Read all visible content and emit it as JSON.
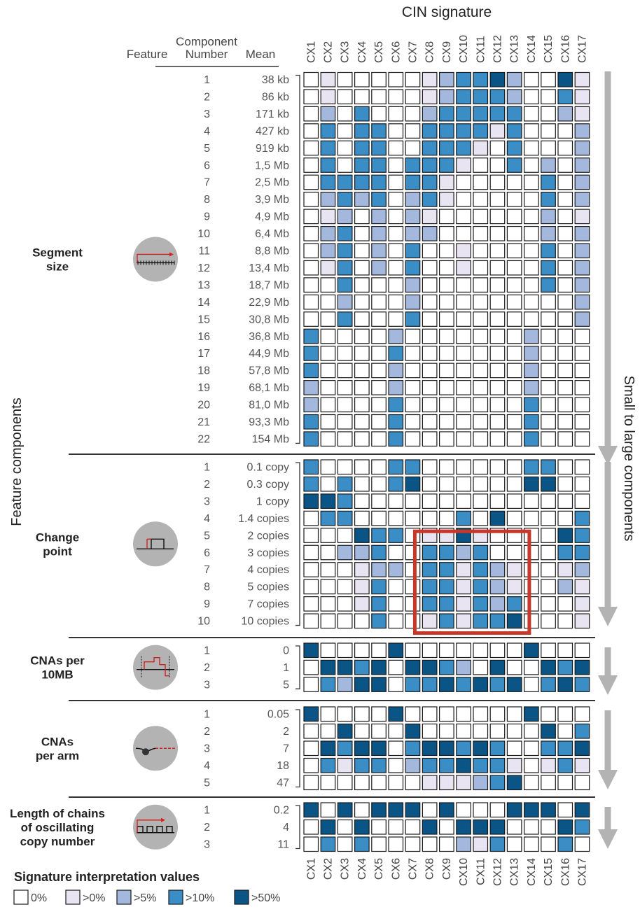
{
  "chart_data": {
    "type": "heatmap",
    "title": "CIN signature",
    "ylabel": "Feature components",
    "right_label": "Small to large components",
    "header": {
      "feature": "Feature",
      "component_number": "Component\nNumber",
      "mean": "Mean"
    },
    "signatures": [
      "CX1",
      "CX2",
      "CX3",
      "CX4",
      "CX5",
      "CX6",
      "CX7",
      "CX8",
      "CX9",
      "CX10",
      "CX11",
      "CX12",
      "CX13",
      "CX14",
      "CX15",
      "CX16",
      "CX17"
    ],
    "legend": {
      "title": "Signature interpretation values",
      "levels": [
        {
          "label": "0%",
          "color": "#ffffff"
        },
        {
          "label": ">0%",
          "color": "#e8e4f2"
        },
        {
          "label": ">5%",
          "color": "#a3b8dc"
        },
        {
          "label": ">10%",
          "color": "#3b8ec5"
        },
        {
          "label": ">50%",
          "color": "#0b5586"
        }
      ]
    },
    "highlight": {
      "sections": [
        "Change point"
      ],
      "from_row": 6,
      "to_row": 10,
      "from_signature": "CX8",
      "to_signature": "CX13",
      "color": "#c7372a"
    },
    "features": [
      {
        "name": "Segment\nsize",
        "icon": "segment-size-icon",
        "rows": [
          {
            "n": "1",
            "mean": "38 kb",
            "v": [
              0,
              1,
              0,
              0,
              0,
              0,
              0,
              1,
              2,
              3,
              3,
              4,
              2,
              0,
              0,
              4,
              1
            ]
          },
          {
            "n": "2",
            "mean": "86 kb",
            "v": [
              0,
              1,
              0,
              0,
              0,
              0,
              0,
              1,
              2,
              3,
              3,
              3,
              2,
              0,
              0,
              3,
              1
            ]
          },
          {
            "n": "3",
            "mean": "171 kb",
            "v": [
              0,
              2,
              0,
              3,
              0,
              0,
              0,
              2,
              3,
              3,
              3,
              3,
              3,
              0,
              0,
              2,
              1
            ]
          },
          {
            "n": "4",
            "mean": "427 kb",
            "v": [
              0,
              3,
              0,
              3,
              3,
              0,
              0,
              3,
              3,
              3,
              3,
              1,
              3,
              0,
              0,
              0,
              2
            ]
          },
          {
            "n": "5",
            "mean": "919 kb",
            "v": [
              0,
              3,
              0,
              3,
              3,
              0,
              0,
              3,
              3,
              3,
              1,
              0,
              3,
              0,
              0,
              0,
              2
            ]
          },
          {
            "n": "6",
            "mean": "1,5 Mb",
            "v": [
              0,
              3,
              0,
              3,
              3,
              0,
              3,
              3,
              3,
              1,
              0,
              0,
              3,
              0,
              2,
              0,
              2
            ]
          },
          {
            "n": "7",
            "mean": "2,5 Mb",
            "v": [
              0,
              3,
              3,
              3,
              3,
              0,
              3,
              3,
              1,
              0,
              0,
              0,
              0,
              0,
              3,
              0,
              2
            ]
          },
          {
            "n": "8",
            "mean": "3,9 Mb",
            "v": [
              0,
              2,
              3,
              2,
              3,
              0,
              2,
              3,
              1,
              0,
              0,
              0,
              0,
              0,
              3,
              0,
              2
            ]
          },
          {
            "n": "9",
            "mean": "4,9 Mb",
            "v": [
              0,
              1,
              2,
              0,
              2,
              0,
              2,
              1,
              0,
              0,
              0,
              0,
              0,
              0,
              2,
              0,
              1
            ]
          },
          {
            "n": "10",
            "mean": "6,4 Mb",
            "v": [
              0,
              2,
              3,
              0,
              2,
              0,
              2,
              2,
              0,
              0,
              0,
              0,
              0,
              0,
              2,
              0,
              2
            ]
          },
          {
            "n": "11",
            "mean": "8,8 Mb",
            "v": [
              0,
              2,
              3,
              0,
              2,
              0,
              3,
              0,
              0,
              1,
              0,
              0,
              0,
              0,
              3,
              0,
              2
            ]
          },
          {
            "n": "12",
            "mean": "13,4 Mb",
            "v": [
              0,
              1,
              3,
              0,
              2,
              0,
              3,
              0,
              0,
              1,
              0,
              0,
              0,
              0,
              3,
              0,
              2
            ]
          },
          {
            "n": "13",
            "mean": "18,7 Mb",
            "v": [
              0,
              0,
              3,
              0,
              0,
              0,
              2,
              0,
              0,
              0,
              0,
              0,
              0,
              0,
              3,
              0,
              2
            ]
          },
          {
            "n": "14",
            "mean": "22,9 Mb",
            "v": [
              0,
              0,
              2,
              0,
              0,
              0,
              2,
              0,
              0,
              0,
              0,
              0,
              0,
              0,
              0,
              0,
              2
            ]
          },
          {
            "n": "15",
            "mean": "30,8 Mb",
            "v": [
              0,
              0,
              3,
              0,
              0,
              0,
              3,
              0,
              0,
              0,
              0,
              0,
              0,
              0,
              0,
              0,
              2
            ]
          },
          {
            "n": "16",
            "mean": "36,8 Mb",
            "v": [
              3,
              0,
              0,
              0,
              0,
              2,
              0,
              0,
              0,
              0,
              0,
              0,
              0,
              2,
              0,
              0,
              0
            ]
          },
          {
            "n": "17",
            "mean": "44,9 Mb",
            "v": [
              3,
              0,
              0,
              0,
              0,
              3,
              0,
              0,
              0,
              0,
              0,
              0,
              0,
              2,
              0,
              0,
              0
            ]
          },
          {
            "n": "18",
            "mean": "57,8 Mb",
            "v": [
              3,
              0,
              0,
              0,
              0,
              2,
              0,
              0,
              0,
              0,
              0,
              0,
              0,
              2,
              0,
              0,
              0
            ]
          },
          {
            "n": "19",
            "mean": "68,1 Mb",
            "v": [
              2,
              0,
              0,
              0,
              0,
              2,
              0,
              0,
              0,
              0,
              0,
              0,
              0,
              2,
              0,
              0,
              0
            ]
          },
          {
            "n": "20",
            "mean": "81,0 Mb",
            "v": [
              2,
              0,
              0,
              0,
              0,
              3,
              0,
              0,
              0,
              0,
              0,
              0,
              0,
              3,
              0,
              0,
              0
            ]
          },
          {
            "n": "21",
            "mean": "93,3 Mb",
            "v": [
              3,
              0,
              0,
              0,
              0,
              3,
              0,
              0,
              0,
              0,
              0,
              0,
              0,
              3,
              0,
              0,
              0
            ]
          },
          {
            "n": "22",
            "mean": "154 Mb",
            "v": [
              3,
              0,
              0,
              0,
              0,
              3,
              0,
              0,
              0,
              0,
              0,
              0,
              0,
              3,
              0,
              0,
              0
            ]
          }
        ]
      },
      {
        "name": "Change\npoint",
        "icon": "change-point-icon",
        "rows": [
          {
            "n": "1",
            "mean": "0.1 copy",
            "v": [
              3,
              0,
              0,
              0,
              0,
              3,
              3,
              0,
              0,
              0,
              0,
              0,
              0,
              3,
              3,
              0,
              0
            ]
          },
          {
            "n": "2",
            "mean": "0.3 copy",
            "v": [
              3,
              0,
              3,
              0,
              0,
              3,
              4,
              0,
              0,
              0,
              0,
              0,
              0,
              4,
              4,
              0,
              0
            ]
          },
          {
            "n": "3",
            "mean": "1 copy",
            "v": [
              4,
              4,
              3,
              0,
              0,
              0,
              0,
              0,
              0,
              0,
              0,
              0,
              0,
              0,
              0,
              0,
              0
            ]
          },
          {
            "n": "4",
            "mean": "1.4 copies",
            "v": [
              0,
              3,
              3,
              0,
              0,
              0,
              0,
              0,
              0,
              3,
              0,
              4,
              0,
              0,
              0,
              0,
              3
            ]
          },
          {
            "n": "5",
            "mean": "2 copies",
            "v": [
              0,
              0,
              0,
              4,
              3,
              3,
              0,
              1,
              1,
              4,
              1,
              0,
              0,
              0,
              0,
              4,
              3
            ]
          },
          {
            "n": "6",
            "mean": "3 copies",
            "v": [
              0,
              0,
              2,
              2,
              3,
              0,
              0,
              3,
              3,
              2,
              3,
              0,
              0,
              0,
              0,
              3,
              3
            ]
          },
          {
            "n": "7",
            "mean": "4 copies",
            "v": [
              0,
              0,
              0,
              1,
              2,
              2,
              0,
              3,
              3,
              1,
              3,
              2,
              1,
              0,
              0,
              1,
              2
            ]
          },
          {
            "n": "8",
            "mean": "5 copies",
            "v": [
              0,
              0,
              0,
              1,
              3,
              0,
              0,
              3,
              3,
              1,
              3,
              2,
              1,
              0,
              0,
              2,
              1
            ]
          },
          {
            "n": "9",
            "mean": "7 copies",
            "v": [
              0,
              0,
              0,
              1,
              3,
              0,
              0,
              3,
              3,
              1,
              3,
              2,
              3,
              0,
              0,
              0,
              1
            ]
          },
          {
            "n": "10",
            "mean": "10 copies",
            "v": [
              0,
              0,
              0,
              0,
              3,
              0,
              0,
              1,
              3,
              1,
              3,
              3,
              4,
              0,
              0,
              0,
              1
            ]
          }
        ]
      },
      {
        "name": "CNAs per\n10MB",
        "icon": "cnas-per-10mb-icon",
        "rows": [
          {
            "n": "1",
            "mean": "0",
            "v": [
              4,
              0,
              0,
              0,
              0,
              4,
              0,
              0,
              0,
              0,
              0,
              0,
              0,
              4,
              0,
              0,
              0
            ]
          },
          {
            "n": "2",
            "mean": "1",
            "v": [
              0,
              4,
              4,
              3,
              4,
              0,
              4,
              4,
              3,
              2,
              0,
              4,
              0,
              0,
              4,
              3,
              4
            ]
          },
          {
            "n": "3",
            "mean": "5",
            "v": [
              0,
              3,
              2,
              4,
              4,
              0,
              3,
              3,
              4,
              3,
              4,
              3,
              4,
              0,
              3,
              4,
              3
            ]
          }
        ]
      },
      {
        "name": "CNAs\nper arm",
        "icon": "cnas-per-arm-icon",
        "rows": [
          {
            "n": "1",
            "mean": "0.05",
            "v": [
              4,
              0,
              0,
              0,
              0,
              4,
              0,
              0,
              0,
              0,
              0,
              0,
              0,
              4,
              0,
              0,
              0
            ]
          },
          {
            "n": "2",
            "mean": "2",
            "v": [
              0,
              0,
              4,
              0,
              0,
              0,
              4,
              0,
              0,
              0,
              0,
              0,
              0,
              0,
              4,
              0,
              3
            ]
          },
          {
            "n": "3",
            "mean": "7",
            "v": [
              0,
              4,
              3,
              4,
              4,
              0,
              3,
              4,
              4,
              3,
              4,
              3,
              0,
              0,
              3,
              3,
              4
            ]
          },
          {
            "n": "4",
            "mean": "18",
            "v": [
              0,
              3,
              1,
              3,
              3,
              0,
              2,
              3,
              3,
              4,
              3,
              3,
              1,
              0,
              1,
              3,
              1
            ]
          },
          {
            "n": "5",
            "mean": "47",
            "v": [
              0,
              0,
              0,
              0,
              0,
              0,
              0,
              1,
              1,
              1,
              2,
              3,
              4,
              0,
              0,
              0,
              0
            ]
          }
        ]
      },
      {
        "name": "Length of  chains\nof oscillating\ncopy number",
        "icon": "oscillating-chains-icon",
        "rows": [
          {
            "n": "1",
            "mean": "0.2",
            "v": [
              4,
              0,
              4,
              0,
              4,
              4,
              4,
              0,
              4,
              0,
              0,
              0,
              4,
              4,
              4,
              0,
              4
            ]
          },
          {
            "n": "2",
            "mean": "4",
            "v": [
              0,
              4,
              0,
              4,
              0,
              0,
              0,
              4,
              0,
              4,
              4,
              4,
              0,
              0,
              0,
              4,
              3
            ]
          },
          {
            "n": "3",
            "mean": "11",
            "v": [
              0,
              3,
              0,
              3,
              0,
              0,
              0,
              0,
              0,
              2,
              1,
              3,
              0,
              0,
              0,
              3,
              0
            ]
          }
        ]
      }
    ]
  }
}
